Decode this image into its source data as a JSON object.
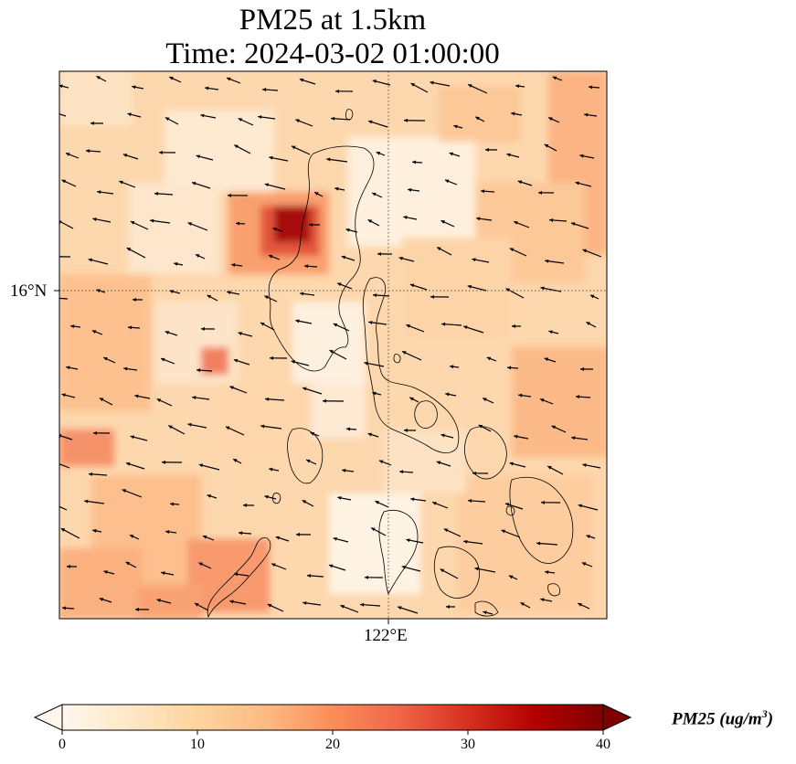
{
  "title": {
    "line1": "PM25 at 1.5km",
    "line2": "Time: 2024-03-02 01:00:00"
  },
  "map": {
    "lat_gridline_label": "16°N",
    "lon_gridline_label": "122°E",
    "field": "PM25",
    "wind_vectors": "shown",
    "coastlines": "shown"
  },
  "colorbar": {
    "label_main": "PM25 (ug/m",
    "label_sup": "3",
    "label_close": ")",
    "min": 0,
    "max": 40,
    "ticks": [
      "0",
      "10",
      "20",
      "30",
      "40"
    ],
    "extend": "both",
    "colormap": [
      "#fff7ec",
      "#fee8c8",
      "#fdd49e",
      "#fdbb84",
      "#fc8d59",
      "#ef6548",
      "#d7301f",
      "#b30000",
      "#7f0000"
    ]
  }
}
